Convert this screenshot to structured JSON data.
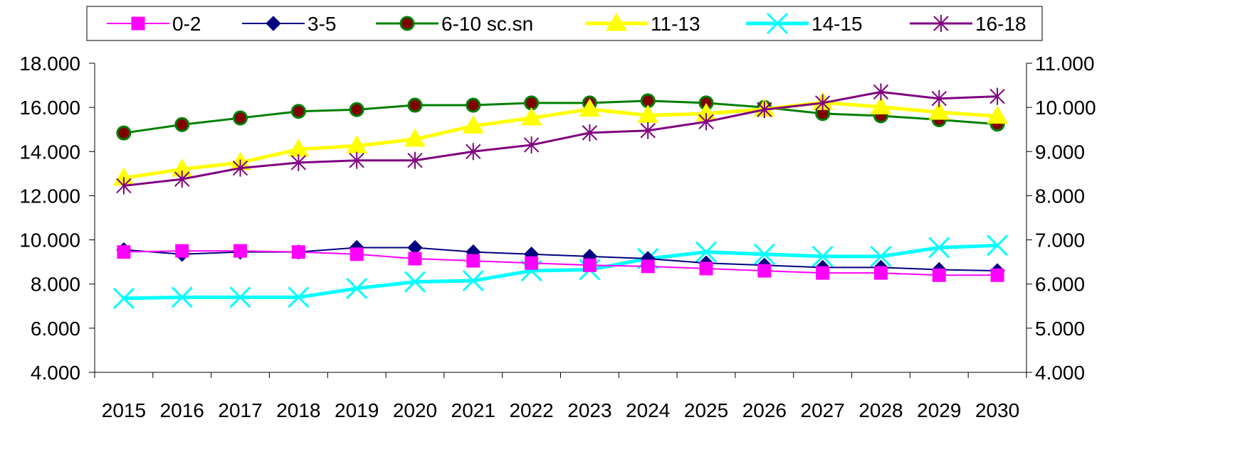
{
  "chart_data": {
    "type": "line",
    "categories": [
      "2015",
      "2016",
      "2017",
      "2018",
      "2019",
      "2020",
      "2021",
      "2022",
      "2023",
      "2024",
      "2025",
      "2026",
      "2027",
      "2028",
      "2029",
      "2030"
    ],
    "left_axis": {
      "ylim": [
        4000,
        18000
      ],
      "ticks": [
        4000,
        6000,
        8000,
        10000,
        12000,
        14000,
        16000,
        18000
      ],
      "tick_labels": [
        "4.000",
        "6.000",
        "8.000",
        "10.000",
        "12.000",
        "14.000",
        "16.000",
        "18.000"
      ]
    },
    "right_axis": {
      "ylim": [
        4000,
        11000
      ],
      "ticks": [
        4000,
        5000,
        6000,
        7000,
        8000,
        9000,
        10000,
        11000
      ],
      "tick_labels": [
        "4.000",
        "5.000",
        "6.000",
        "7.000",
        "8.000",
        "9.000",
        "10.000",
        "11.000"
      ]
    },
    "legend_position": "top",
    "grid": false,
    "series": [
      {
        "name": "0-2",
        "axis": "left",
        "color": "#FF00FF",
        "marker": "square",
        "line_width": 2,
        "values": [
          9450,
          9500,
          9500,
          9450,
          9350,
          9150,
          9050,
          8950,
          8850,
          8800,
          8700,
          8600,
          8500,
          8500,
          8400,
          8400
        ]
      },
      {
        "name": "3-5",
        "axis": "left",
        "color": "#000080",
        "marker": "diamond",
        "line_width": 2,
        "values": [
          9550,
          9350,
          9450,
          9450,
          9650,
          9650,
          9450,
          9350,
          9250,
          9150,
          8950,
          8850,
          8750,
          8750,
          8650,
          8600
        ]
      },
      {
        "name": "6-10 sc.sn",
        "axis": "right",
        "color": "#008000",
        "marker": "circle",
        "marker_fill": "#800000",
        "line_width": 3,
        "values": [
          9420,
          9610,
          9760,
          9910,
          9950,
          10050,
          10050,
          10100,
          10100,
          10150,
          10100,
          10000,
          9860,
          9810,
          9720,
          9620
        ]
      },
      {
        "name": "11-13",
        "axis": "right",
        "color": "#FFFF00",
        "marker": "triangle",
        "line_width": 5,
        "values": [
          8400,
          8600,
          8750,
          9050,
          9130,
          9280,
          9580,
          9760,
          9960,
          9820,
          9860,
          9960,
          10110,
          10010,
          9890,
          9800
        ]
      },
      {
        "name": "14-15",
        "axis": "left",
        "color": "#00FFFF",
        "marker": "x",
        "line_width": 5,
        "values": [
          7350,
          7400,
          7400,
          7400,
          7800,
          8100,
          8150,
          8600,
          8650,
          9150,
          9450,
          9350,
          9250,
          9250,
          9650,
          9750
        ]
      },
      {
        "name": "16-18",
        "axis": "left",
        "color": "#800080",
        "marker": "star",
        "line_width": 3,
        "values": [
          12450,
          12750,
          13250,
          13500,
          13600,
          13600,
          14000,
          14300,
          14850,
          14950,
          15350,
          15900,
          16200,
          16700,
          16400,
          16500
        ]
      }
    ]
  }
}
